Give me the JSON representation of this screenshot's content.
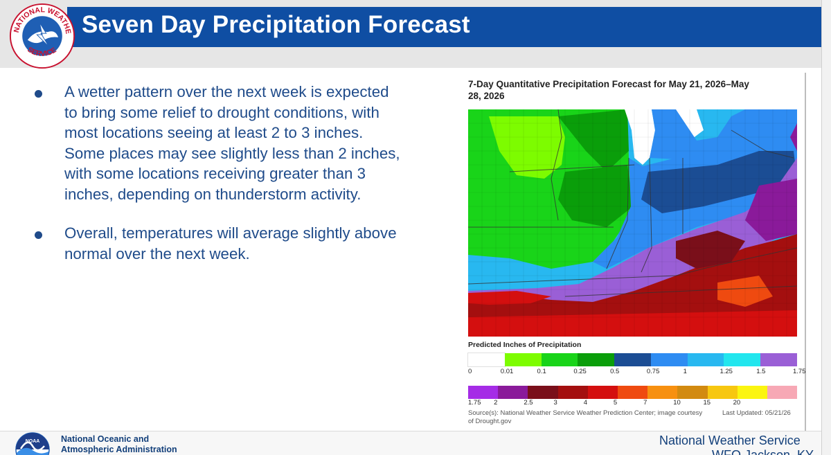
{
  "header": {
    "title": "Seven Day Precipitation Forecast",
    "logo_text": "NATIONAL WEATHER SERVICE"
  },
  "bullets": [
    {
      "text": "A wetter pattern over the next week is expected to bring some relief to drought conditions, with most locations seeing at least 2 to 3 inches. Some places may see slightly less than 2 inches, with some locations receiving greater than 3 inches, depending on thunderstorm activity."
    },
    {
      "text": "Overall, temperatures will average slightly above normal over the next week."
    }
  ],
  "map": {
    "title": "7-Day Quantitative Precipitation Forecast for May 21, 2026–May 28, 2026",
    "legend_title": "Predicted Inches of Precipitation",
    "scale_top": {
      "colors": [
        "#ffffff",
        "#7dfc00",
        "#19d419",
        "#0a9e0a",
        "#1b4d94",
        "#2e8cf2",
        "#28b8f0",
        "#22e6ee",
        "#9a5fd6"
      ],
      "ticks": [
        "0",
        "0.01",
        "0.1",
        "0.25",
        "0.5",
        "0.75",
        "1",
        "1.25",
        "1.5",
        "1.75"
      ]
    },
    "scale_bottom": {
      "colors": [
        "#a52ce6",
        "#8a1a9a",
        "#7a0f1a",
        "#a40f0f",
        "#d40f0f",
        "#ef4a10",
        "#f79010",
        "#d28a10",
        "#f7c710",
        "#fbf510",
        "#f7a8b5"
      ],
      "ticks": [
        "1.75",
        "2",
        "2.5",
        "3",
        "4",
        "5",
        "7",
        "10",
        "15",
        "20"
      ]
    },
    "source": "Source(s): National Weather Service Weather Prediction Center; image courtesy of Drought.gov",
    "updated": "Last Updated: 05/21/26"
  },
  "footer": {
    "noaa_line1": "National Oceanic and",
    "noaa_line2": "Atmospheric Administration",
    "noaa_logo_text": "NOAA",
    "nws": "National Weather Service",
    "office": "WFO Jackson, KY"
  }
}
